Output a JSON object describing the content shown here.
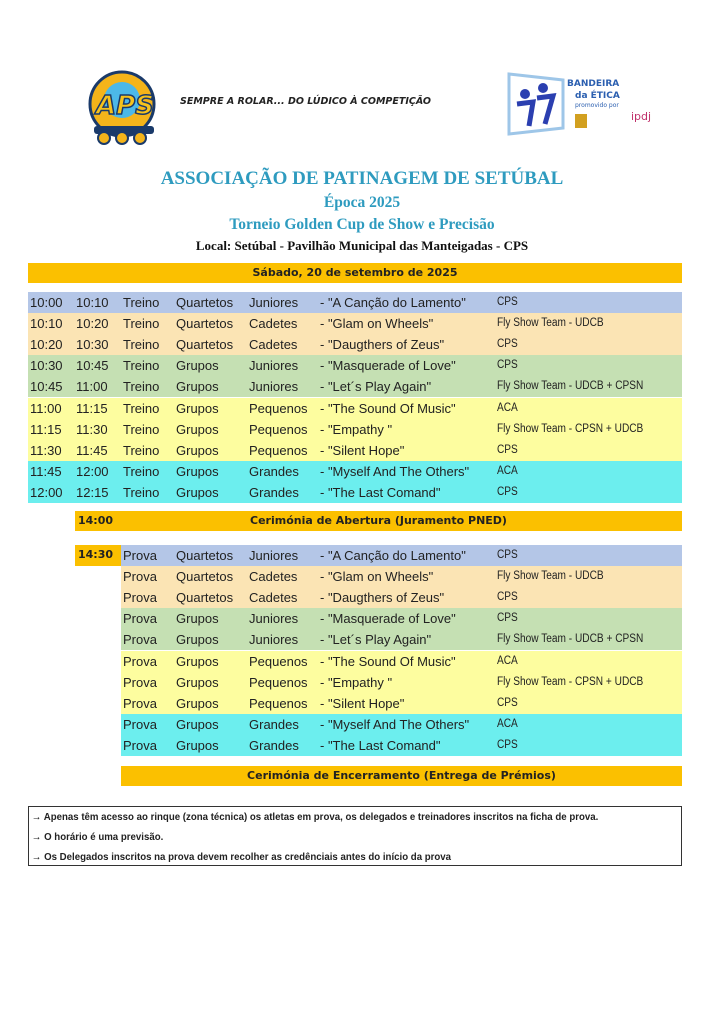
{
  "header": {
    "tagline": "SEMPRE A ROLAR... DO LÚDICO À COMPETIÇÃO",
    "logo_left_text": "APS",
    "logo_right_text": "BANDEIRA da ÉTICA promovido por"
  },
  "title": {
    "org": "ASSOCIAÇÃO DE PATINAGEM DE SETÚBAL",
    "season": "Época 2025",
    "event": "Torneio Golden Cup de Show e Precisão",
    "location": "Local: Setúbal - Pavilhão Municipal das Manteigadas - CPS"
  },
  "date": "Sábado, 20 de setembro de 2025",
  "colors": {
    "blue": "#b4c6e7",
    "peach": "#fbe4b4",
    "green": "#c5e0b3",
    "yellow": "#fdfd9f",
    "cyan": "#6ceeee",
    "orange": "#fbc000",
    "title": "#2e9bbf"
  },
  "training": [
    {
      "start": "10:00",
      "end": "10:10",
      "type": "Treino",
      "disc": "Quartetos",
      "cat": "Juniores",
      "title": "- \"A Canção do Lamento\"",
      "team": "CPS",
      "color": "blue"
    },
    {
      "start": "10:10",
      "end": "10:20",
      "type": "Treino",
      "disc": "Quartetos",
      "cat": "Cadetes",
      "title": "- \"Glam on Wheels\"",
      "team": "Fly Show Team - UDCB",
      "color": "peach"
    },
    {
      "start": "10:20",
      "end": "10:30",
      "type": "Treino",
      "disc": "Quartetos",
      "cat": "Cadetes",
      "title": "- \"Daugthers of Zeus\"",
      "team": "CPS",
      "color": "peach"
    },
    {
      "start": "10:30",
      "end": "10:45",
      "type": "Treino",
      "disc": "Grupos",
      "cat": "Juniores",
      "title": "- \"Masquerade of Love\"",
      "team": "CPS",
      "color": "green"
    },
    {
      "start": "10:45",
      "end": "11:00",
      "type": "Treino",
      "disc": "Grupos",
      "cat": "Juniores",
      "title": "- \"Let´s Play Again\"",
      "team": "Fly Show Team - UDCB + CPSN",
      "color": "green"
    },
    {
      "start": "11:00",
      "end": "11:15",
      "type": "Treino",
      "disc": "Grupos",
      "cat": "Pequenos",
      "title": "- \"The Sound Of Music\"",
      "team": "ACA",
      "color": "yellow"
    },
    {
      "start": "11:15",
      "end": "11:30",
      "type": "Treino",
      "disc": "Grupos",
      "cat": "Pequenos",
      "title": "- \"Empathy \"",
      "team": "Fly Show Team - CPSN + UDCB",
      "color": "yellow"
    },
    {
      "start": "11:30",
      "end": "11:45",
      "type": "Treino",
      "disc": "Grupos",
      "cat": "Pequenos",
      "title": "- \"Silent Hope\"",
      "team": "CPS",
      "color": "yellow"
    },
    {
      "start": "11:45",
      "end": "12:00",
      "type": "Treino",
      "disc": "Grupos",
      "cat": "Grandes",
      "title": "- \"Myself And The Others\"",
      "team": "ACA",
      "color": "cyan"
    },
    {
      "start": "12:00",
      "end": "12:15",
      "type": "Treino",
      "disc": "Grupos",
      "cat": "Grandes",
      "title": "- \"The Last Comand\"",
      "team": "CPS",
      "color": "cyan"
    }
  ],
  "opening": {
    "time": "14:00",
    "label": "Cerimónia de Abertura (Juramento PNED)"
  },
  "competition_start": "14:30",
  "competition": [
    {
      "type": "Prova",
      "disc": "Quartetos",
      "cat": "Juniores",
      "title": "- \"A Canção do Lamento\"",
      "team": "CPS",
      "color": "blue"
    },
    {
      "type": "Prova",
      "disc": "Quartetos",
      "cat": "Cadetes",
      "title": "- \"Glam on Wheels\"",
      "team": "Fly Show Team - UDCB",
      "color": "peach"
    },
    {
      "type": "Prova",
      "disc": "Quartetos",
      "cat": "Cadetes",
      "title": "- \"Daugthers of Zeus\"",
      "team": "CPS",
      "color": "peach"
    },
    {
      "type": "Prova",
      "disc": "Grupos",
      "cat": "Juniores",
      "title": "- \"Masquerade of Love\"",
      "team": "CPS",
      "color": "green"
    },
    {
      "type": "Prova",
      "disc": "Grupos",
      "cat": "Juniores",
      "title": "- \"Let´s Play Again\"",
      "team": "Fly Show Team - UDCB + CPSN",
      "color": "green"
    },
    {
      "type": "Prova",
      "disc": "Grupos",
      "cat": "Pequenos",
      "title": "- \"The Sound Of Music\"",
      "team": "ACA",
      "color": "yellow"
    },
    {
      "type": "Prova",
      "disc": "Grupos",
      "cat": "Pequenos",
      "title": "- \"Empathy \"",
      "team": "Fly Show Team - CPSN + UDCB",
      "color": "yellow"
    },
    {
      "type": "Prova",
      "disc": "Grupos",
      "cat": "Pequenos",
      "title": "- \"Silent Hope\"",
      "team": "CPS",
      "color": "yellow"
    },
    {
      "type": "Prova",
      "disc": "Grupos",
      "cat": "Grandes",
      "title": "- \"Myself And The Others\"",
      "team": "ACA",
      "color": "cyan"
    },
    {
      "type": "Prova",
      "disc": "Grupos",
      "cat": "Grandes",
      "title": "- \"The Last Comand\"",
      "team": "CPS",
      "color": "cyan"
    }
  ],
  "closing": "Cerimónia de Encerramento (Entrega de Prémios)",
  "notes": [
    "→ Apenas têm acesso ao rinque (zona técnica) os atletas em prova, os delegados e treinadores inscritos na ficha de prova.",
    "→ O horário é uma previsão.",
    "→ Os Delegados inscritos na prova devem recolher as credênciais antes do início da prova"
  ]
}
